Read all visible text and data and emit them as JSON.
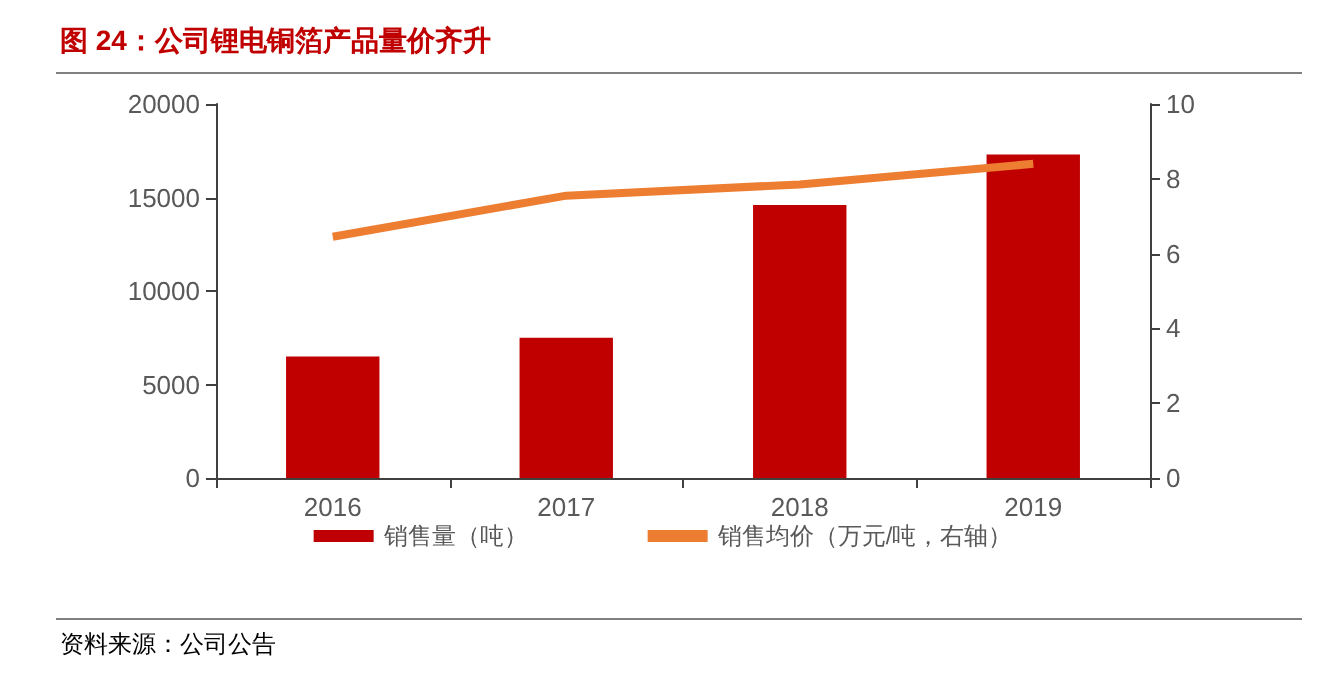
{
  "chart_data": {
    "type": "bar",
    "title": "图 24：公司锂电铜箔产品量价齐升",
    "categories": [
      "2016",
      "2017",
      "2018",
      "2019"
    ],
    "series": [
      {
        "name": "销售量（吨）",
        "color": "#c00000",
        "values": [
          6500,
          7500,
          14600,
          17300
        ]
      },
      {
        "name": "销售均价（万元/吨，右轴）",
        "type": "line",
        "axis": "y2",
        "color": "#ed7d31",
        "values": [
          6.45,
          7.55,
          7.85,
          8.4
        ]
      }
    ],
    "ylim": [
      0,
      20000
    ],
    "yticks": [
      0,
      5000,
      10000,
      15000,
      20000
    ],
    "y2lim": [
      0,
      10
    ],
    "y2ticks": [
      0,
      2,
      4,
      6,
      8,
      10
    ],
    "grid": false,
    "legend": "bottom",
    "marker": "none",
    "annotations": [
      "资料来源：公司公告"
    ]
  }
}
